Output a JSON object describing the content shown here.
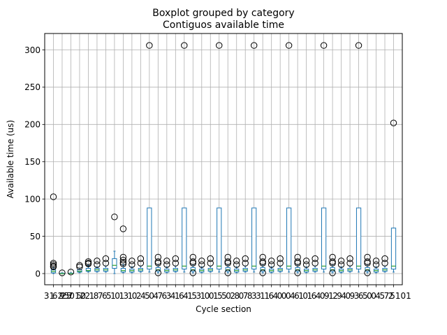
{
  "chart_data": {
    "type": "boxplot",
    "suptitle": "Boxplot grouped by category",
    "title": "Contiguos available time",
    "xlabel": "Cycle section",
    "ylabel": "Available time (us)",
    "ylim": [
      -15,
      322
    ],
    "yticks": [
      0,
      50,
      100,
      150,
      200,
      250,
      300
    ],
    "grid": true,
    "box_color": "#1f77b4",
    "median_color": "#2ca02c",
    "first_tick_label": "31",
    "last_tick_label": "5101",
    "tick_label_fragments": [
      "62",
      "9",
      "25",
      "7",
      "5012",
      "5",
      "0",
      "2",
      "1",
      "8",
      "7",
      "6",
      "5",
      "1",
      "0",
      "1",
      "3",
      "1",
      "0",
      "2",
      "4",
      "5",
      "0",
      "4",
      "7",
      "6",
      "3",
      "4",
      "1",
      "6",
      "4",
      "1",
      "5",
      "3",
      "1",
      "0",
      "0",
      "1",
      "5",
      "5",
      "0",
      "2",
      "8",
      "0",
      "7",
      "8",
      "3",
      "3",
      "1",
      "1",
      "6",
      "4",
      "0",
      "0",
      "0",
      "4",
      "6",
      "1",
      "0",
      "1",
      "6",
      "4",
      "0",
      "9",
      "1",
      "2",
      "9",
      "4",
      "0",
      "9",
      "3",
      "6",
      "5",
      "0",
      "0",
      "4",
      "5",
      "7",
      "2"
    ],
    "boxes": [
      {
        "q1": 1,
        "med": 3,
        "q3": 5,
        "wlo": 0,
        "whi": 8,
        "fliers": [
          103,
          14,
          12,
          10,
          9
        ]
      },
      {
        "q1": 0,
        "med": 0,
        "q3": 0.5,
        "wlo": 0,
        "whi": 1,
        "fliers": [
          1
        ]
      },
      {
        "q1": 0,
        "med": 0,
        "q3": 0.5,
        "wlo": 0,
        "whi": 1,
        "fliers": [
          2
        ]
      },
      {
        "q1": 2,
        "med": 3,
        "q3": 5,
        "wlo": 1,
        "whi": 7,
        "fliers": [
          11,
          9
        ]
      },
      {
        "q1": 3,
        "med": 4,
        "q3": 7,
        "wlo": 2,
        "whi": 11,
        "fliers": [
          16,
          14,
          13
        ]
      },
      {
        "q1": 3,
        "med": 5,
        "q3": 7,
        "wlo": 2,
        "whi": 9,
        "fliers": [
          17,
          12
        ]
      },
      {
        "q1": 3,
        "med": 5,
        "q3": 7,
        "wlo": 2,
        "whi": 10,
        "fliers": [
          20,
          14
        ]
      },
      {
        "q1": 7,
        "med": 11,
        "q3": 20,
        "wlo": 0,
        "whi": 30,
        "fliers": [
          76
        ]
      },
      {
        "q1": 2,
        "med": 4,
        "q3": 7,
        "wlo": 1,
        "whi": 12,
        "fliers": [
          60,
          22,
          18,
          15,
          13
        ]
      },
      {
        "q1": 2,
        "med": 4,
        "q3": 6,
        "wlo": 1,
        "whi": 9,
        "fliers": [
          17,
          12
        ]
      },
      {
        "q1": 3,
        "med": 5,
        "q3": 7,
        "wlo": 2,
        "whi": 10,
        "fliers": [
          20,
          14
        ]
      },
      {
        "q1": 6,
        "med": 10,
        "q3": 88,
        "wlo": 2,
        "whi": 88,
        "fliers": [
          306
        ]
      },
      {
        "q1": 3,
        "med": 5,
        "q3": 8,
        "wlo": 1,
        "whi": 12,
        "fliers": [
          22,
          16,
          14,
          1
        ]
      },
      {
        "q1": 2,
        "med": 4,
        "q3": 6,
        "wlo": 1,
        "whi": 9,
        "fliers": [
          17,
          12
        ]
      },
      {
        "q1": 3,
        "med": 5,
        "q3": 7,
        "wlo": 2,
        "whi": 10,
        "fliers": [
          20,
          14
        ]
      },
      {
        "q1": 6,
        "med": 10,
        "q3": 88,
        "wlo": 2,
        "whi": 88,
        "fliers": [
          306
        ]
      },
      {
        "q1": 3,
        "med": 5,
        "q3": 8,
        "wlo": 1,
        "whi": 12,
        "fliers": [
          22,
          16,
          14,
          1
        ]
      },
      {
        "q1": 2,
        "med": 4,
        "q3": 6,
        "wlo": 1,
        "whi": 9,
        "fliers": [
          17,
          12
        ]
      },
      {
        "q1": 3,
        "med": 5,
        "q3": 7,
        "wlo": 2,
        "whi": 10,
        "fliers": [
          20,
          14
        ]
      },
      {
        "q1": 6,
        "med": 10,
        "q3": 88,
        "wlo": 2,
        "whi": 88,
        "fliers": [
          306
        ]
      },
      {
        "q1": 3,
        "med": 5,
        "q3": 8,
        "wlo": 1,
        "whi": 12,
        "fliers": [
          22,
          16,
          14,
          1
        ]
      },
      {
        "q1": 2,
        "med": 4,
        "q3": 6,
        "wlo": 1,
        "whi": 9,
        "fliers": [
          17,
          12
        ]
      },
      {
        "q1": 3,
        "med": 5,
        "q3": 7,
        "wlo": 2,
        "whi": 10,
        "fliers": [
          20,
          14
        ]
      },
      {
        "q1": 6,
        "med": 10,
        "q3": 88,
        "wlo": 2,
        "whi": 88,
        "fliers": [
          306
        ]
      },
      {
        "q1": 3,
        "med": 5,
        "q3": 8,
        "wlo": 1,
        "whi": 12,
        "fliers": [
          22,
          16,
          14,
          1
        ]
      },
      {
        "q1": 2,
        "med": 4,
        "q3": 6,
        "wlo": 1,
        "whi": 9,
        "fliers": [
          17,
          12
        ]
      },
      {
        "q1": 3,
        "med": 5,
        "q3": 7,
        "wlo": 2,
        "whi": 10,
        "fliers": [
          20,
          14
        ]
      },
      {
        "q1": 6,
        "med": 10,
        "q3": 88,
        "wlo": 2,
        "whi": 88,
        "fliers": [
          306
        ]
      },
      {
        "q1": 3,
        "med": 5,
        "q3": 8,
        "wlo": 1,
        "whi": 12,
        "fliers": [
          22,
          16,
          14,
          1
        ]
      },
      {
        "q1": 2,
        "med": 4,
        "q3": 6,
        "wlo": 1,
        "whi": 9,
        "fliers": [
          17,
          12
        ]
      },
      {
        "q1": 3,
        "med": 5,
        "q3": 7,
        "wlo": 2,
        "whi": 10,
        "fliers": [
          20,
          14
        ]
      },
      {
        "q1": 6,
        "med": 10,
        "q3": 88,
        "wlo": 2,
        "whi": 88,
        "fliers": [
          306
        ]
      },
      {
        "q1": 3,
        "med": 5,
        "q3": 8,
        "wlo": 1,
        "whi": 12,
        "fliers": [
          22,
          16,
          14,
          1
        ]
      },
      {
        "q1": 2,
        "med": 4,
        "q3": 6,
        "wlo": 1,
        "whi": 9,
        "fliers": [
          17,
          12
        ]
      },
      {
        "q1": 3,
        "med": 5,
        "q3": 7,
        "wlo": 2,
        "whi": 10,
        "fliers": [
          20,
          14
        ]
      },
      {
        "q1": 6,
        "med": 10,
        "q3": 88,
        "wlo": 2,
        "whi": 88,
        "fliers": [
          306
        ]
      },
      {
        "q1": 3,
        "med": 5,
        "q3": 8,
        "wlo": 1,
        "whi": 12,
        "fliers": [
          22,
          16,
          14,
          1
        ]
      },
      {
        "q1": 2,
        "med": 4,
        "q3": 6,
        "wlo": 1,
        "whi": 9,
        "fliers": [
          17,
          12
        ]
      },
      {
        "q1": 3,
        "med": 5,
        "q3": 7,
        "wlo": 2,
        "whi": 10,
        "fliers": [
          20,
          14
        ]
      },
      {
        "q1": 6,
        "med": 10,
        "q3": 61,
        "wlo": 2,
        "whi": 61,
        "fliers": [
          202
        ]
      }
    ]
  }
}
